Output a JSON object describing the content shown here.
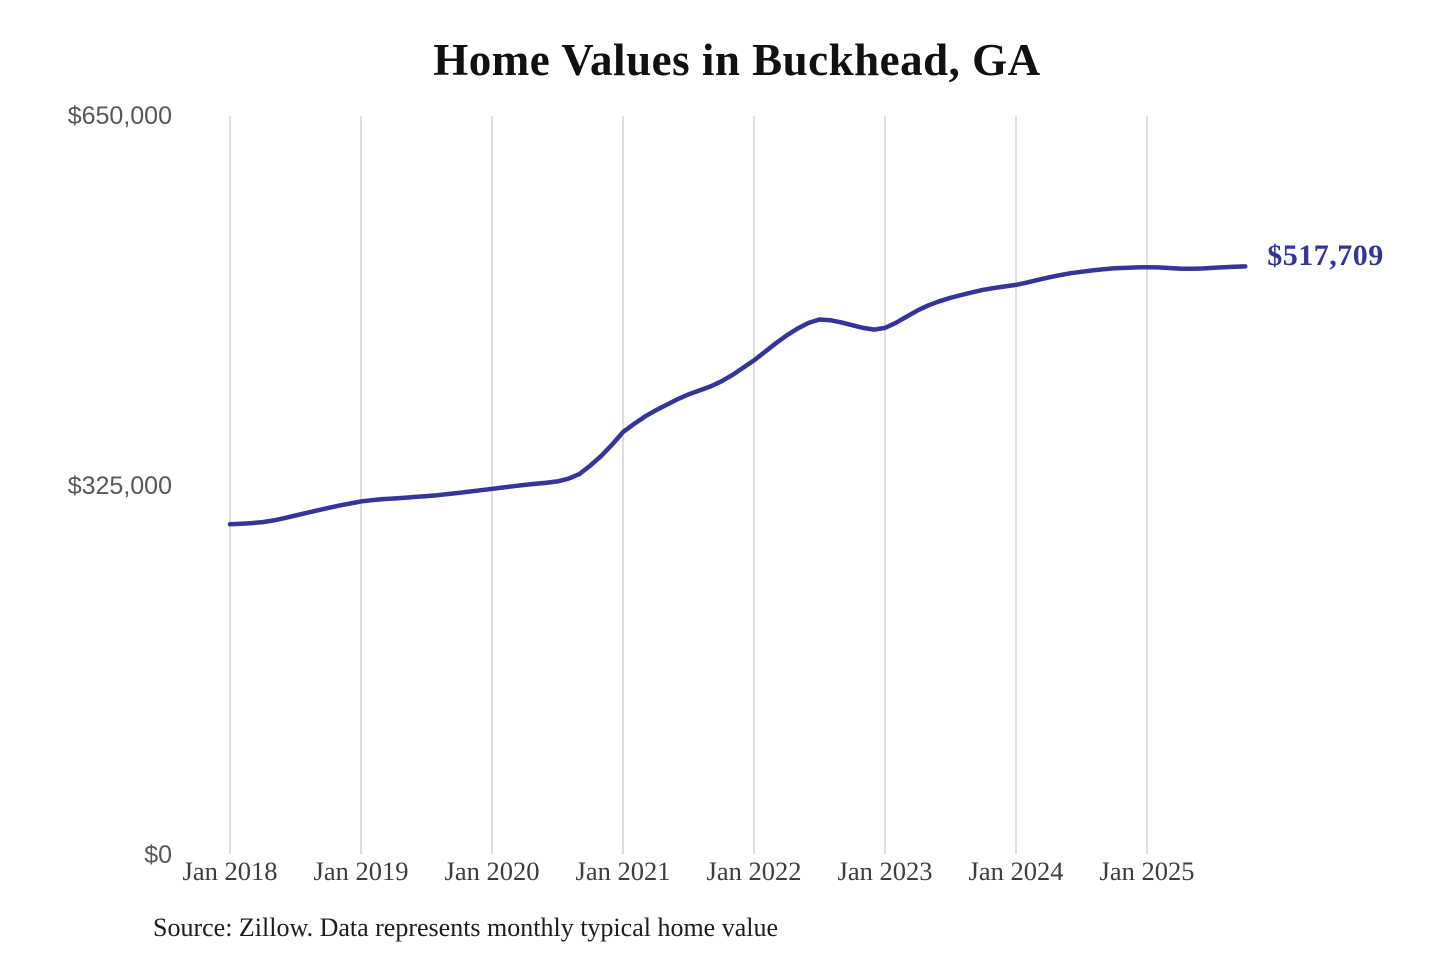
{
  "title": "Home Values in Buckhead, GA",
  "source_note": "Source: Zillow. Data represents monthly typical home value",
  "end_label": "$517,709",
  "colors": {
    "line": "#34349b",
    "end_label": "#333399",
    "grid": "#c9c9c9",
    "y_axis_text": "#58585a",
    "x_axis_text": "#3d3d3d",
    "title_text": "#111111",
    "source_text": "#1d1d1d",
    "background": "#ffffff"
  },
  "y_axis": {
    "ticks": [
      {
        "label": "$650,000",
        "value": 650000
      },
      {
        "label": "$325,000",
        "value": 325000
      },
      {
        "label": "$0",
        "value": 0
      }
    ]
  },
  "x_axis": {
    "ticks": [
      "Jan 2018",
      "Jan 2019",
      "Jan 2020",
      "Jan 2021",
      "Jan 2022",
      "Jan 2023",
      "Jan 2024",
      "Jan 2025"
    ]
  },
  "chart_data": {
    "type": "line",
    "title": "Home Values in Buckhead, GA",
    "xlabel": "",
    "ylabel": "",
    "ylim": [
      0,
      650000
    ],
    "y_tick_values": [
      0,
      325000,
      650000
    ],
    "x_tick_labels": [
      "Jan 2018",
      "Jan 2019",
      "Jan 2020",
      "Jan 2021",
      "Jan 2022",
      "Jan 2023",
      "Jan 2024",
      "Jan 2025"
    ],
    "grid": "vertical-only",
    "legend": false,
    "series_name": "Typical home value (monthly)",
    "line_color": "#34349b",
    "final_point": {
      "x": "2025-10",
      "value": 517709,
      "label": "$517,709"
    },
    "x": [
      "2018-01",
      "2018-02",
      "2018-03",
      "2018-04",
      "2018-05",
      "2018-06",
      "2018-07",
      "2018-08",
      "2018-09",
      "2018-10",
      "2018-11",
      "2018-12",
      "2019-01",
      "2019-02",
      "2019-03",
      "2019-04",
      "2019-05",
      "2019-06",
      "2019-07",
      "2019-08",
      "2019-09",
      "2019-10",
      "2019-11",
      "2019-12",
      "2020-01",
      "2020-02",
      "2020-03",
      "2020-04",
      "2020-05",
      "2020-06",
      "2020-07",
      "2020-08",
      "2020-09",
      "2020-10",
      "2020-11",
      "2020-12",
      "2021-01",
      "2021-02",
      "2021-03",
      "2021-04",
      "2021-05",
      "2021-06",
      "2021-07",
      "2021-08",
      "2021-09",
      "2021-10",
      "2021-11",
      "2021-12",
      "2022-01",
      "2022-02",
      "2022-03",
      "2022-04",
      "2022-05",
      "2022-06",
      "2022-07",
      "2022-08",
      "2022-09",
      "2022-10",
      "2022-11",
      "2022-12",
      "2023-01",
      "2023-02",
      "2023-03",
      "2023-04",
      "2023-05",
      "2023-06",
      "2023-07",
      "2023-08",
      "2023-09",
      "2023-10",
      "2023-11",
      "2023-12",
      "2024-01",
      "2024-02",
      "2024-03",
      "2024-04",
      "2024-05",
      "2024-06",
      "2024-07",
      "2024-08",
      "2024-09",
      "2024-10",
      "2024-11",
      "2024-12",
      "2025-01",
      "2025-02",
      "2025-03",
      "2025-04",
      "2025-05",
      "2025-06",
      "2025-07",
      "2025-08",
      "2025-09",
      "2025-10"
    ],
    "values": [
      291000,
      291300,
      291900,
      292800,
      294300,
      296300,
      298600,
      300900,
      303100,
      305300,
      307300,
      309200,
      311000,
      312100,
      313000,
      313600,
      314300,
      315000,
      315700,
      316500,
      317500,
      318600,
      319700,
      320900,
      322000,
      323200,
      324400,
      325500,
      326500,
      327500,
      328600,
      331000,
      335000,
      342500,
      351000,
      361000,
      372000,
      379000,
      385600,
      391100,
      396100,
      400900,
      405100,
      408600,
      412100,
      416600,
      422100,
      428500,
      435000,
      442500,
      450100,
      457100,
      463100,
      468000,
      471000,
      470400,
      468500,
      466000,
      463600,
      462100,
      463600,
      468100,
      473600,
      479100,
      483600,
      487100,
      490100,
      492600,
      494900,
      497100,
      498700,
      500100,
      501400,
      503500,
      505800,
      508000,
      510000,
      511700,
      513000,
      514200,
      515200,
      516000,
      516400,
      516800,
      517000,
      516800,
      516300,
      515800,
      515600,
      515900,
      516400,
      516900,
      517400,
      517709
    ]
  }
}
